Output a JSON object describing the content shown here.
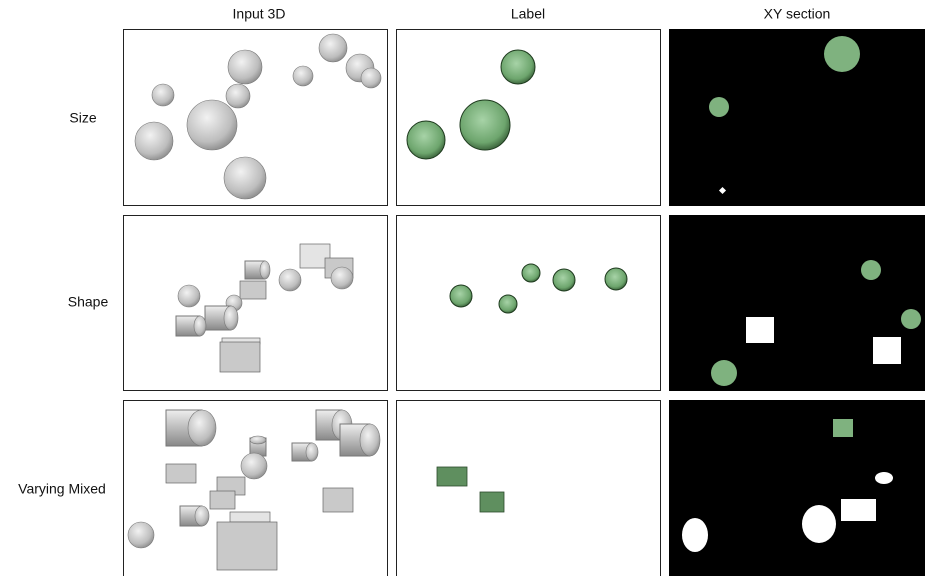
{
  "columns": [
    "Input 3D",
    "Label",
    "XY section"
  ],
  "rows": [
    "Size",
    "Shape",
    "Varying Mixed"
  ]
}
